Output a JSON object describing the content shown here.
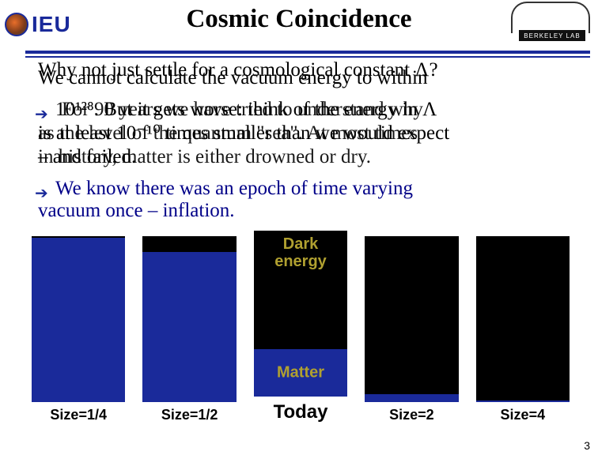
{
  "header": {
    "logo_left_text": "IEU",
    "title": "Cosmic Coincidence",
    "lab_badge": "BERKELEY LAB"
  },
  "text": {
    "l1a": "Why not just settle for a cosmological constant ",
    "l1b": "We cannot calculate the vacuum energy to within",
    "q": "?",
    "lam": "Λ",
    "l2_full": "10¹²⁸.  But it gets worse: think of the energy in Λ",
    "ov2a": "For  90 years we have tried to understand why",
    "l3_full": "is at least 10⁻¹⁰ times smaller than we would expect",
    "ov3a": "as the level of the quantum \"sea\".  At most times",
    "l4a": "– and failed.",
    "ov4a": "in history, matter is either drowned or dry.",
    "bp2a": " We know there was an epoch of time varying",
    "bp2b": "vacuum once – inflation.",
    "dark_label": "Dark",
    "energy_label": "energy",
    "matter_label": "Matter"
  },
  "chart": {
    "bars": [
      {
        "label": "Size=1/4",
        "label_big": false,
        "total_h": 210,
        "dark_h": 2,
        "matter_h": 208,
        "show_dark_label": false,
        "show_matter_label": false
      },
      {
        "label": "Size=1/2",
        "label_big": false,
        "total_h": 210,
        "dark_h": 20,
        "matter_h": 190,
        "show_dark_label": false,
        "show_matter_label": false
      },
      {
        "label": "Today",
        "label_big": true,
        "total_h": 210,
        "dark_h": 150,
        "matter_h": 60,
        "show_dark_label": true,
        "show_matter_label": true
      },
      {
        "label": "Size=2",
        "label_big": false,
        "total_h": 210,
        "dark_h": 200,
        "matter_h": 10,
        "show_dark_label": false,
        "show_matter_label": false
      },
      {
        "label": "Size=4",
        "label_big": false,
        "total_h": 210,
        "dark_h": 208,
        "matter_h": 2,
        "show_dark_label": false,
        "show_matter_label": false
      }
    ],
    "colors": {
      "dark": "#000000",
      "matter": "#1a2a9a",
      "label": "#b0a030",
      "xaxis": "#000000"
    }
  },
  "page_number": "3"
}
